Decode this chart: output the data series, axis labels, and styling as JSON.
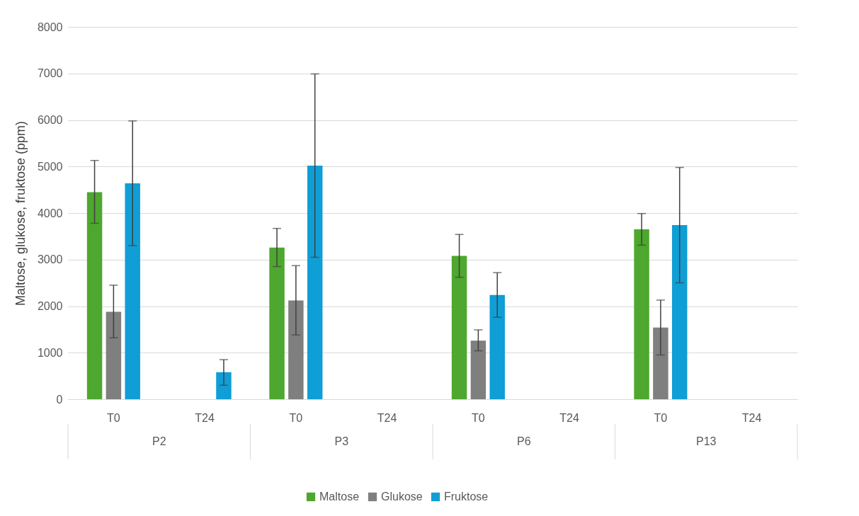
{
  "chart_data": {
    "type": "bar",
    "ylabel": "Maltose, glukose, fruktose (ppm)",
    "categories": [
      "T0",
      "T24",
      "T0",
      "T24",
      "T0",
      "T24",
      "T0",
      "T24"
    ],
    "annotations": [
      "P2",
      "P3",
      "P6",
      "P13"
    ],
    "series": [
      {
        "name": "Maltose",
        "color": "#4ea72e",
        "values": [
          4450,
          0,
          3260,
          0,
          3080,
          0,
          3650,
          0
        ],
        "errors": [
          [
            3780,
            5130
          ],
          null,
          [
            2850,
            3670
          ],
          null,
          [
            2620,
            3540
          ],
          null,
          [
            3310,
            3990
          ],
          null
        ]
      },
      {
        "name": "Glukose",
        "color": "#7f7f7f",
        "values": [
          1880,
          0,
          2120,
          0,
          1260,
          0,
          1540,
          0
        ],
        "errors": [
          [
            1320,
            2450
          ],
          null,
          [
            1380,
            2870
          ],
          null,
          [
            1040,
            1490
          ],
          null,
          [
            950,
            2130
          ],
          null
        ]
      },
      {
        "name": "Fruktose",
        "color": "#0f9ed5",
        "values": [
          4640,
          580,
          5020,
          0,
          2240,
          0,
          3740,
          0
        ],
        "errors": [
          [
            3300,
            5980
          ],
          [
            300,
            850
          ],
          [
            3050,
            6990
          ],
          null,
          [
            1760,
            2720
          ],
          null,
          [
            2500,
            4980
          ],
          null
        ]
      }
    ],
    "ylim": [
      0,
      8000
    ],
    "yticks": [
      0,
      1000,
      2000,
      3000,
      4000,
      5000,
      6000,
      7000,
      8000
    ],
    "grid": "y",
    "legend": "bottom"
  }
}
